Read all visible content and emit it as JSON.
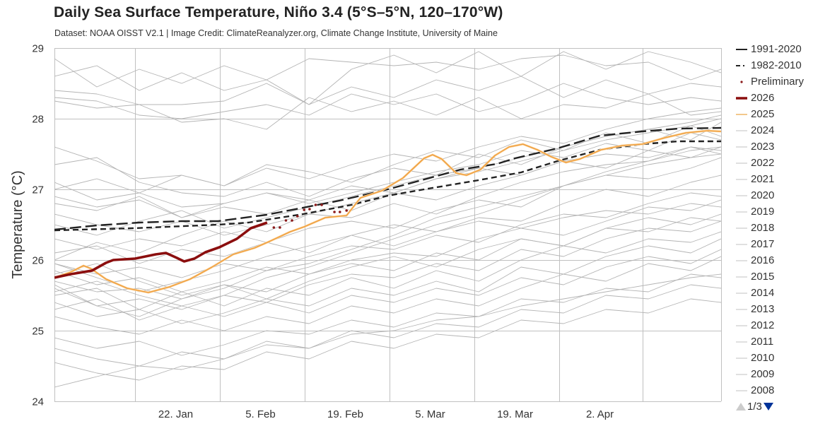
{
  "header": {
    "title": "Daily Sea Surface Temperature, Niño 3.4 (5°S–5°N, 120–170°W)",
    "subtitle": "Dataset: NOAA OISST V2.1 | Image Credit: ClimateReanalyzer.org, Climate Change Institute, University of Maine"
  },
  "legend": {
    "items": [
      {
        "label": "1991-2020",
        "style": "longdash",
        "color": "#222222"
      },
      {
        "label": "1982-2010",
        "style": "shortdash",
        "color": "#222222"
      },
      {
        "label": "Preliminary",
        "style": "dot",
        "color": "#8b1a1a"
      },
      {
        "label": "2026",
        "style": "thick",
        "color": "#8b0e0e"
      },
      {
        "label": "2025",
        "style": "solid",
        "color": "#f0a040"
      },
      {
        "label": "2024",
        "style": "thin",
        "color": "#cccccc"
      },
      {
        "label": "2023",
        "style": "thin",
        "color": "#cccccc"
      },
      {
        "label": "2022",
        "style": "thin",
        "color": "#cccccc"
      },
      {
        "label": "2021",
        "style": "thin",
        "color": "#cccccc"
      },
      {
        "label": "2020",
        "style": "thin",
        "color": "#cccccc"
      },
      {
        "label": "2019",
        "style": "thin",
        "color": "#cccccc"
      },
      {
        "label": "2018",
        "style": "thin",
        "color": "#cccccc"
      },
      {
        "label": "2017",
        "style": "thin",
        "color": "#cccccc"
      },
      {
        "label": "2016",
        "style": "thin",
        "color": "#cccccc"
      },
      {
        "label": "2015",
        "style": "thin",
        "color": "#cccccc"
      },
      {
        "label": "2014",
        "style": "thin",
        "color": "#cccccc"
      },
      {
        "label": "2013",
        "style": "thin",
        "color": "#cccccc"
      },
      {
        "label": "2012",
        "style": "thin",
        "color": "#cccccc"
      },
      {
        "label": "2011",
        "style": "thin",
        "color": "#cccccc"
      },
      {
        "label": "2010",
        "style": "thin",
        "color": "#cccccc"
      },
      {
        "label": "2009",
        "style": "thin",
        "color": "#cccccc"
      },
      {
        "label": "2008",
        "style": "thin",
        "color": "#cccccc"
      }
    ],
    "pager": {
      "text": "1/3"
    }
  },
  "chart_data": {
    "type": "line",
    "title": "Daily Sea Surface Temperature, Niño 3.4 (5°S–5°N, 120–170°W)",
    "subtitle": "Dataset: NOAA OISST V2.1 | Image Credit: ClimateReanalyzer.org, Climate Change Institute, University of Maine",
    "xlabel": "",
    "ylabel": "Temperature (°C)",
    "x_unit": "days since 2 Jan",
    "xlim": [
      0,
      110
    ],
    "ylim": [
      24,
      29
    ],
    "yticks": [
      24,
      25,
      26,
      27,
      28,
      29
    ],
    "xgrid_days": [
      0,
      13.3,
      27.3,
      41.3,
      55.3,
      69.3,
      83.3,
      97.1,
      110
    ],
    "xtick_labels": [
      {
        "label": "22. Jan",
        "day": 20
      },
      {
        "label": "5. Feb",
        "day": 34
      },
      {
        "label": "19. Feb",
        "day": 48
      },
      {
        "label": "5. Mar",
        "day": 62
      },
      {
        "label": "19. Mar",
        "day": 76
      },
      {
        "label": "2. Apr",
        "day": 90
      }
    ],
    "grid": true,
    "legend_position": "right",
    "series": [
      {
        "name": "1991-2020",
        "style": "longdash",
        "color": "#222222",
        "x": [
          0,
          7,
          14,
          21,
          27,
          35,
          41,
          47,
          55,
          61,
          67,
          73,
          76,
          83,
          90,
          97,
          103,
          110
        ],
        "y": [
          26.43,
          26.49,
          26.53,
          26.55,
          26.55,
          26.64,
          26.74,
          26.84,
          27.0,
          27.14,
          27.28,
          27.36,
          27.44,
          27.58,
          27.76,
          27.82,
          27.86,
          27.87
        ]
      },
      {
        "name": "1982-2010",
        "style": "shortdash",
        "color": "#222222",
        "x": [
          0,
          13,
          27,
          32,
          41,
          49,
          55,
          61,
          70,
          77,
          83,
          90,
          97,
          103,
          110
        ],
        "y": [
          26.42,
          26.45,
          26.5,
          26.53,
          26.65,
          26.78,
          26.91,
          27.0,
          27.13,
          27.24,
          27.4,
          27.56,
          27.64,
          27.68,
          27.68
        ]
      },
      {
        "name": "2026",
        "style": "thick",
        "color": "#8b0e0e",
        "x": [
          0,
          2.7,
          6.2,
          8.5,
          9.7,
          13.3,
          16.7,
          18.4,
          20.2,
          21.4,
          23.1,
          24.9,
          27.2,
          30.1,
          32.4,
          35.1
        ],
        "y": [
          25.75,
          25.8,
          25.85,
          25.96,
          26.0,
          26.02,
          26.08,
          26.1,
          26.03,
          25.98,
          26.02,
          26.11,
          26.18,
          26.3,
          26.45,
          26.53
        ]
      },
      {
        "name": "Preliminary",
        "style": "dot",
        "color": "#8b1a1a",
        "x": [
          36.2,
          37.2,
          38.2,
          39.2,
          40.1,
          41.2,
          42.1,
          43.1,
          44.1,
          46.2,
          47.1,
          48.2
        ],
        "y": [
          26.46,
          26.46,
          26.56,
          26.56,
          26.62,
          26.71,
          26.72,
          26.78,
          26.78,
          26.68,
          26.68,
          26.7
        ]
      },
      {
        "name": "2025",
        "style": "solid",
        "color": "#f0a040",
        "x": [
          0,
          2.7,
          4.8,
          6,
          8.5,
          12,
          15.5,
          19,
          22.4,
          26,
          29.5,
          33,
          35.4,
          38.9,
          41.2,
          44.7,
          48.2,
          50.5,
          54,
          57.5,
          61,
          62.4,
          63.9,
          66.3,
          68,
          70.3,
          72.7,
          75,
          77.3,
          79.7,
          82,
          84.4,
          86.7,
          90.2,
          93.7,
          97,
          100.7,
          104.2,
          107.7,
          110
        ],
        "y": [
          25.75,
          25.83,
          25.92,
          25.88,
          25.73,
          25.6,
          25.54,
          25.62,
          25.73,
          25.9,
          26.08,
          26.17,
          26.26,
          26.4,
          26.47,
          26.6,
          26.63,
          26.88,
          26.98,
          27.16,
          27.44,
          27.49,
          27.43,
          27.23,
          27.2,
          27.28,
          27.48,
          27.6,
          27.64,
          27.56,
          27.46,
          27.38,
          27.43,
          27.56,
          27.62,
          27.64,
          27.73,
          27.8,
          27.83,
          27.82
        ]
      }
    ],
    "historical_series": {
      "style": "thin",
      "color": "#b4b4b4",
      "x": [
        0,
        7,
        14,
        21,
        28,
        35,
        42,
        49,
        56,
        63,
        70,
        77,
        84,
        91,
        98,
        105,
        110
      ],
      "years": [
        {
          "y": [
            28.85,
            28.45,
            28.7,
            28.5,
            28.75,
            28.55,
            28.2,
            28.7,
            28.9,
            28.65,
            28.95,
            28.6,
            28.95,
            28.7,
            28.95,
            28.8,
            28.65
          ]
        },
        {
          "y": [
            28.6,
            28.75,
            28.4,
            28.65,
            28.4,
            28.55,
            28.85,
            28.8,
            28.75,
            28.8,
            28.7,
            28.85,
            28.9,
            28.75,
            28.8,
            28.55,
            28.7
          ]
        },
        {
          "y": [
            28.4,
            28.35,
            28.2,
            28.2,
            28.25,
            28.5,
            28.2,
            28.45,
            28.3,
            28.55,
            28.4,
            28.6,
            28.3,
            28.55,
            28.35,
            28.5,
            28.45
          ]
        },
        {
          "y": [
            28.3,
            28.25,
            28.05,
            28.0,
            28.1,
            28.2,
            28.05,
            28.35,
            28.2,
            28.35,
            28.1,
            28.25,
            28.5,
            28.3,
            28.2,
            28.3,
            28.25
          ]
        },
        {
          "y": [
            28.25,
            28.15,
            28.2,
            27.95,
            28.0,
            27.85,
            28.3,
            28.1,
            28.25,
            28.05,
            28.3,
            28.0,
            28.2,
            28.15,
            28.35,
            28.05,
            28.1
          ]
        },
        {
          "y": [
            27.6,
            27.4,
            27.15,
            27.2,
            27.05,
            27.35,
            27.25,
            27.1,
            27.35,
            27.55,
            27.45,
            27.7,
            27.55,
            27.8,
            27.65,
            27.9,
            27.75
          ]
        },
        {
          "y": [
            27.35,
            27.45,
            27.1,
            26.95,
            26.9,
            27.1,
            26.9,
            27.15,
            27.3,
            27.2,
            27.5,
            27.35,
            27.6,
            27.75,
            27.85,
            27.7,
            27.95
          ]
        },
        {
          "y": [
            27.1,
            26.85,
            26.95,
            26.75,
            26.8,
            26.95,
            26.8,
            26.95,
            27.1,
            27.25,
            27.35,
            27.55,
            27.45,
            27.65,
            27.55,
            27.8,
            27.7
          ]
        },
        {
          "y": [
            26.8,
            26.7,
            26.9,
            26.6,
            26.75,
            26.65,
            26.85,
            26.7,
            26.95,
            26.85,
            27.05,
            27.2,
            27.4,
            27.3,
            27.55,
            27.45,
            27.6
          ]
        },
        {
          "y": [
            26.65,
            26.5,
            26.4,
            26.55,
            26.35,
            26.5,
            26.65,
            26.6,
            26.8,
            26.65,
            26.9,
            27.1,
            27.25,
            27.35,
            27.4,
            27.6,
            27.5
          ]
        },
        {
          "y": [
            26.3,
            26.15,
            26.3,
            26.2,
            26.4,
            26.25,
            26.45,
            26.55,
            26.45,
            26.7,
            26.85,
            26.75,
            27.05,
            27.2,
            27.15,
            27.3,
            27.45
          ]
        },
        {
          "y": [
            26.1,
            26.2,
            25.95,
            26.15,
            26.05,
            26.25,
            26.1,
            26.35,
            26.5,
            26.4,
            26.6,
            26.55,
            26.8,
            27.0,
            26.9,
            27.1,
            27.2
          ]
        },
        {
          "y": [
            25.95,
            25.8,
            25.9,
            25.75,
            25.95,
            25.85,
            26.05,
            26.2,
            26.15,
            26.35,
            26.25,
            26.5,
            26.65,
            26.6,
            26.8,
            26.95,
            26.9
          ]
        },
        {
          "y": [
            25.85,
            25.65,
            25.75,
            25.55,
            25.7,
            25.9,
            25.8,
            26.0,
            26.1,
            26.05,
            26.3,
            26.45,
            26.35,
            26.55,
            26.75,
            26.7,
            26.85
          ]
        },
        {
          "y": [
            25.7,
            25.55,
            25.6,
            25.45,
            25.65,
            25.55,
            25.8,
            25.95,
            25.85,
            26.1,
            26.0,
            26.3,
            26.2,
            26.45,
            26.6,
            26.5,
            26.65
          ]
        },
        {
          "y": [
            25.6,
            25.35,
            25.45,
            25.3,
            25.5,
            25.4,
            25.65,
            25.8,
            25.75,
            25.95,
            25.85,
            26.15,
            26.05,
            26.3,
            26.45,
            26.4,
            26.55
          ]
        },
        {
          "y": [
            25.5,
            25.6,
            25.3,
            25.55,
            25.35,
            25.6,
            25.5,
            25.75,
            25.6,
            25.85,
            25.7,
            26.0,
            26.2,
            26.1,
            26.3,
            26.25,
            26.4
          ]
        },
        {
          "y": [
            25.4,
            25.2,
            25.3,
            25.1,
            25.25,
            25.45,
            25.35,
            25.6,
            25.5,
            25.7,
            25.55,
            25.9,
            25.8,
            26.05,
            26.2,
            26.1,
            26.3
          ]
        },
        {
          "y": [
            25.3,
            25.45,
            25.15,
            25.35,
            25.2,
            25.4,
            25.25,
            25.5,
            25.4,
            25.6,
            25.5,
            25.75,
            25.65,
            25.9,
            26.05,
            25.95,
            26.15
          ]
        },
        {
          "y": [
            25.2,
            25.05,
            24.95,
            25.15,
            25.0,
            25.2,
            25.1,
            25.35,
            25.25,
            25.45,
            25.35,
            25.6,
            25.8,
            25.7,
            25.95,
            25.85,
            26.05
          ]
        },
        {
          "y": [
            24.9,
            24.75,
            24.85,
            24.65,
            24.8,
            25.0,
            24.95,
            25.15,
            25.05,
            25.25,
            25.2,
            25.45,
            25.4,
            25.6,
            25.55,
            25.8,
            25.75
          ]
        },
        {
          "y": [
            24.75,
            24.6,
            24.5,
            24.7,
            24.6,
            24.85,
            24.75,
            25.0,
            24.9,
            25.1,
            25.05,
            25.3,
            25.25,
            25.5,
            25.45,
            25.65,
            25.6
          ]
        },
        {
          "y": [
            24.55,
            24.4,
            24.3,
            24.5,
            24.45,
            24.7,
            24.6,
            24.85,
            24.75,
            24.95,
            24.9,
            25.15,
            25.1,
            25.3,
            25.25,
            25.45,
            25.4
          ]
        },
        {
          "y": [
            24.2,
            24.35,
            24.5,
            24.45,
            24.6,
            24.8,
            24.75,
            24.95,
            25.0,
            25.15,
            25.2,
            25.35,
            25.45,
            25.55,
            25.65,
            25.75,
            25.8
          ]
        },
        {
          "y": [
            25.65,
            25.35,
            25.2,
            25.45,
            25.6,
            25.85,
            25.95,
            26.15,
            26.35,
            26.6,
            26.75,
            26.9,
            27.05,
            27.2,
            27.35,
            27.45,
            27.5
          ]
        },
        {
          "y": [
            25.55,
            25.7,
            25.5,
            25.35,
            25.5,
            25.75,
            25.9,
            26.1,
            26.3,
            26.5,
            26.65,
            26.85,
            27.05,
            27.25,
            27.4,
            27.55,
            27.6
          ]
        },
        {
          "y": [
            26.5,
            26.35,
            26.55,
            26.7,
            26.45,
            26.6,
            26.75,
            26.9,
            27.05,
            27.2,
            27.3,
            27.45,
            27.6,
            27.75,
            27.85,
            27.95,
            28.05
          ]
        },
        {
          "y": [
            26.0,
            26.25,
            26.1,
            26.35,
            26.55,
            26.4,
            26.65,
            26.8,
            26.95,
            27.15,
            27.25,
            27.4,
            27.55,
            27.7,
            27.8,
            27.9,
            28.0
          ]
        },
        {
          "y": [
            27.0,
            27.15,
            26.95,
            27.2,
            27.05,
            27.3,
            27.15,
            27.35,
            27.5,
            27.4,
            27.6,
            27.75,
            27.65,
            27.85,
            28.0,
            28.1,
            28.15
          ]
        },
        {
          "y": [
            26.9,
            26.75,
            26.85,
            26.6,
            26.8,
            26.95,
            26.85,
            27.05,
            26.95,
            27.15,
            27.3,
            27.2,
            27.4,
            27.5,
            27.45,
            27.6,
            27.55
          ]
        },
        {
          "y": [
            25.95,
            25.75,
            25.55,
            25.7,
            25.85,
            26.05,
            26.2,
            26.35,
            26.2,
            26.4,
            26.55,
            26.45,
            26.6,
            26.7,
            26.65,
            26.8,
            26.75
          ]
        },
        {
          "y": [
            25.8,
            25.95,
            25.7,
            25.5,
            25.65,
            25.45,
            25.7,
            25.9,
            26.05,
            25.9,
            26.15,
            26.3,
            26.2,
            26.45,
            26.4,
            26.6,
            26.55
          ]
        }
      ]
    }
  }
}
